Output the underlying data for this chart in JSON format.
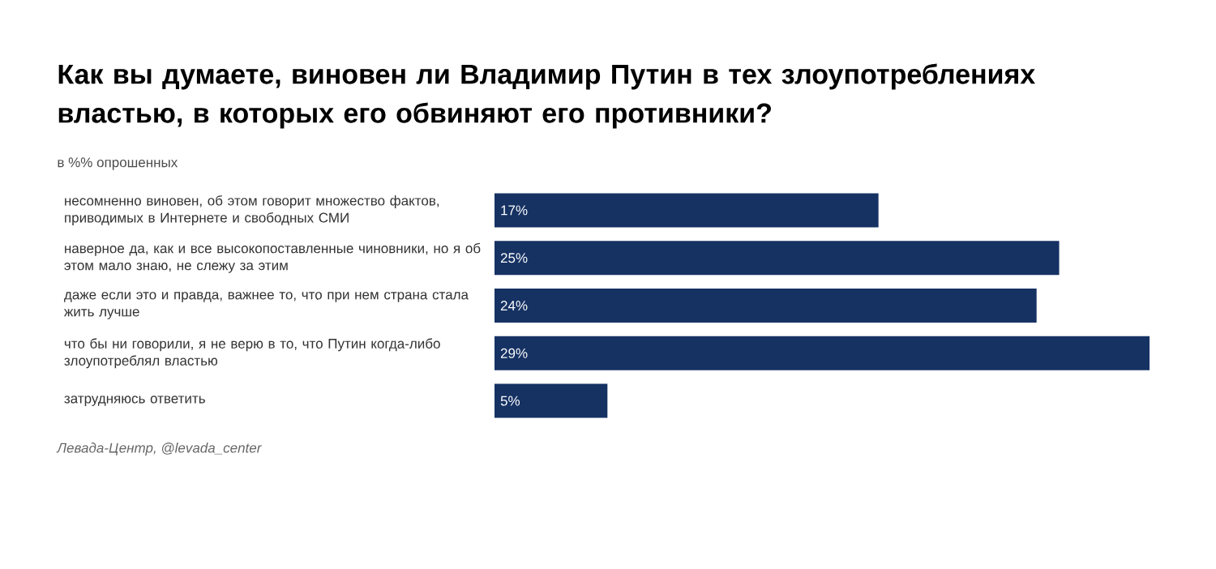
{
  "chart_data": {
    "type": "bar",
    "orientation": "horizontal",
    "title": "Как вы думаете, виновен ли Владимир Путин в тех злоупотреблениях властью, в которых его обвиняют его противники?",
    "subtitle": "в %% опрошенных",
    "categories": [
      "несомненно виновен, об этом говорит множество фактов, приводимых в Интернете и свободных СМИ",
      "наверное да, как и все высокопоставленные чиновники, но я об этом мало знаю, не слежу за этим",
      "даже если это и правда, важнее то, что при нем страна стала жить лучше",
      "что бы ни говорили, я не верю в то, что Путин когда-либо злоупотреблял властью",
      "затрудняюсь ответить"
    ],
    "values": [
      17,
      25,
      24,
      29,
      5
    ],
    "value_labels": [
      "17%",
      "25%",
      "24%",
      "29%",
      "5%"
    ],
    "color": "#163263",
    "annotations": [
      "*Левада-Центр, @levada_center*"
    ]
  }
}
